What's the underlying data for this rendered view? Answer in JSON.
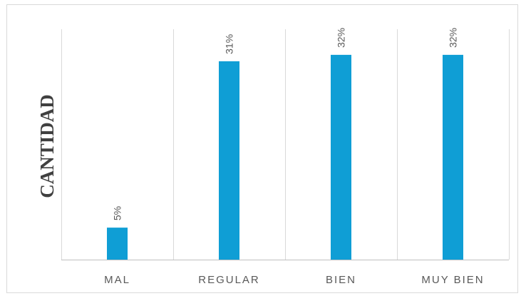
{
  "chart_data": {
    "type": "bar",
    "categories": [
      "MAL",
      "REGULAR",
      "BIEN",
      "MUY BIEN"
    ],
    "values": [
      5,
      31,
      32,
      32
    ],
    "data_labels": [
      "5%",
      "31%",
      "32%",
      "32%"
    ],
    "title": "",
    "xlabel": "",
    "ylabel": "CANTIDAD",
    "ylim": [
      0,
      36
    ],
    "grid": "vertical category separators",
    "legend": "none",
    "bar_color": "#0f9ed5",
    "gridline_color": "#d9d9d9",
    "axis_color": "#bfbfbf"
  }
}
